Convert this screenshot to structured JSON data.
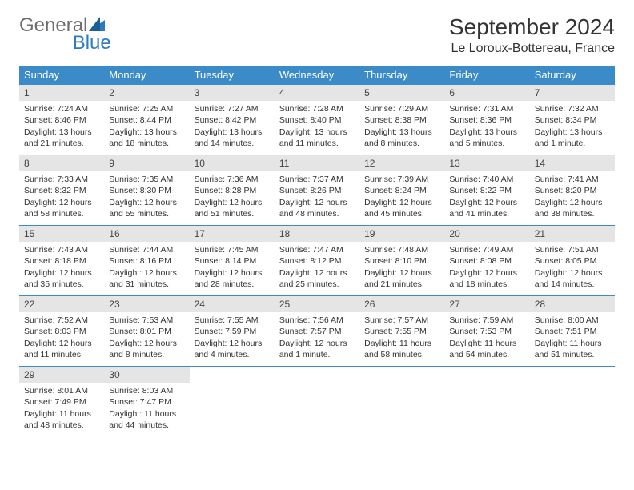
{
  "logo": {
    "text1": "General",
    "text2": "Blue"
  },
  "title": "September 2024",
  "location": "Le Loroux-Bottereau, France",
  "colors": {
    "header_bg": "#3b8bc9",
    "header_text": "#ffffff",
    "daynum_bg": "#e5e5e5",
    "border": "#3b8bc9",
    "logo_gray": "#6d6d6d",
    "logo_blue": "#2a7bbf"
  },
  "dow": [
    "Sunday",
    "Monday",
    "Tuesday",
    "Wednesday",
    "Thursday",
    "Friday",
    "Saturday"
  ],
  "weeks": [
    [
      {
        "n": "1",
        "sr": "Sunrise: 7:24 AM",
        "ss": "Sunset: 8:46 PM",
        "dl1": "Daylight: 13 hours",
        "dl2": "and 21 minutes."
      },
      {
        "n": "2",
        "sr": "Sunrise: 7:25 AM",
        "ss": "Sunset: 8:44 PM",
        "dl1": "Daylight: 13 hours",
        "dl2": "and 18 minutes."
      },
      {
        "n": "3",
        "sr": "Sunrise: 7:27 AM",
        "ss": "Sunset: 8:42 PM",
        "dl1": "Daylight: 13 hours",
        "dl2": "and 14 minutes."
      },
      {
        "n": "4",
        "sr": "Sunrise: 7:28 AM",
        "ss": "Sunset: 8:40 PM",
        "dl1": "Daylight: 13 hours",
        "dl2": "and 11 minutes."
      },
      {
        "n": "5",
        "sr": "Sunrise: 7:29 AM",
        "ss": "Sunset: 8:38 PM",
        "dl1": "Daylight: 13 hours",
        "dl2": "and 8 minutes."
      },
      {
        "n": "6",
        "sr": "Sunrise: 7:31 AM",
        "ss": "Sunset: 8:36 PM",
        "dl1": "Daylight: 13 hours",
        "dl2": "and 5 minutes."
      },
      {
        "n": "7",
        "sr": "Sunrise: 7:32 AM",
        "ss": "Sunset: 8:34 PM",
        "dl1": "Daylight: 13 hours",
        "dl2": "and 1 minute."
      }
    ],
    [
      {
        "n": "8",
        "sr": "Sunrise: 7:33 AM",
        "ss": "Sunset: 8:32 PM",
        "dl1": "Daylight: 12 hours",
        "dl2": "and 58 minutes."
      },
      {
        "n": "9",
        "sr": "Sunrise: 7:35 AM",
        "ss": "Sunset: 8:30 PM",
        "dl1": "Daylight: 12 hours",
        "dl2": "and 55 minutes."
      },
      {
        "n": "10",
        "sr": "Sunrise: 7:36 AM",
        "ss": "Sunset: 8:28 PM",
        "dl1": "Daylight: 12 hours",
        "dl2": "and 51 minutes."
      },
      {
        "n": "11",
        "sr": "Sunrise: 7:37 AM",
        "ss": "Sunset: 8:26 PM",
        "dl1": "Daylight: 12 hours",
        "dl2": "and 48 minutes."
      },
      {
        "n": "12",
        "sr": "Sunrise: 7:39 AM",
        "ss": "Sunset: 8:24 PM",
        "dl1": "Daylight: 12 hours",
        "dl2": "and 45 minutes."
      },
      {
        "n": "13",
        "sr": "Sunrise: 7:40 AM",
        "ss": "Sunset: 8:22 PM",
        "dl1": "Daylight: 12 hours",
        "dl2": "and 41 minutes."
      },
      {
        "n": "14",
        "sr": "Sunrise: 7:41 AM",
        "ss": "Sunset: 8:20 PM",
        "dl1": "Daylight: 12 hours",
        "dl2": "and 38 minutes."
      }
    ],
    [
      {
        "n": "15",
        "sr": "Sunrise: 7:43 AM",
        "ss": "Sunset: 8:18 PM",
        "dl1": "Daylight: 12 hours",
        "dl2": "and 35 minutes."
      },
      {
        "n": "16",
        "sr": "Sunrise: 7:44 AM",
        "ss": "Sunset: 8:16 PM",
        "dl1": "Daylight: 12 hours",
        "dl2": "and 31 minutes."
      },
      {
        "n": "17",
        "sr": "Sunrise: 7:45 AM",
        "ss": "Sunset: 8:14 PM",
        "dl1": "Daylight: 12 hours",
        "dl2": "and 28 minutes."
      },
      {
        "n": "18",
        "sr": "Sunrise: 7:47 AM",
        "ss": "Sunset: 8:12 PM",
        "dl1": "Daylight: 12 hours",
        "dl2": "and 25 minutes."
      },
      {
        "n": "19",
        "sr": "Sunrise: 7:48 AM",
        "ss": "Sunset: 8:10 PM",
        "dl1": "Daylight: 12 hours",
        "dl2": "and 21 minutes."
      },
      {
        "n": "20",
        "sr": "Sunrise: 7:49 AM",
        "ss": "Sunset: 8:08 PM",
        "dl1": "Daylight: 12 hours",
        "dl2": "and 18 minutes."
      },
      {
        "n": "21",
        "sr": "Sunrise: 7:51 AM",
        "ss": "Sunset: 8:05 PM",
        "dl1": "Daylight: 12 hours",
        "dl2": "and 14 minutes."
      }
    ],
    [
      {
        "n": "22",
        "sr": "Sunrise: 7:52 AM",
        "ss": "Sunset: 8:03 PM",
        "dl1": "Daylight: 12 hours",
        "dl2": "and 11 minutes."
      },
      {
        "n": "23",
        "sr": "Sunrise: 7:53 AM",
        "ss": "Sunset: 8:01 PM",
        "dl1": "Daylight: 12 hours",
        "dl2": "and 8 minutes."
      },
      {
        "n": "24",
        "sr": "Sunrise: 7:55 AM",
        "ss": "Sunset: 7:59 PM",
        "dl1": "Daylight: 12 hours",
        "dl2": "and 4 minutes."
      },
      {
        "n": "25",
        "sr": "Sunrise: 7:56 AM",
        "ss": "Sunset: 7:57 PM",
        "dl1": "Daylight: 12 hours",
        "dl2": "and 1 minute."
      },
      {
        "n": "26",
        "sr": "Sunrise: 7:57 AM",
        "ss": "Sunset: 7:55 PM",
        "dl1": "Daylight: 11 hours",
        "dl2": "and 58 minutes."
      },
      {
        "n": "27",
        "sr": "Sunrise: 7:59 AM",
        "ss": "Sunset: 7:53 PM",
        "dl1": "Daylight: 11 hours",
        "dl2": "and 54 minutes."
      },
      {
        "n": "28",
        "sr": "Sunrise: 8:00 AM",
        "ss": "Sunset: 7:51 PM",
        "dl1": "Daylight: 11 hours",
        "dl2": "and 51 minutes."
      }
    ],
    [
      {
        "n": "29",
        "sr": "Sunrise: 8:01 AM",
        "ss": "Sunset: 7:49 PM",
        "dl1": "Daylight: 11 hours",
        "dl2": "and 48 minutes."
      },
      {
        "n": "30",
        "sr": "Sunrise: 8:03 AM",
        "ss": "Sunset: 7:47 PM",
        "dl1": "Daylight: 11 hours",
        "dl2": "and 44 minutes."
      },
      null,
      null,
      null,
      null,
      null
    ]
  ]
}
